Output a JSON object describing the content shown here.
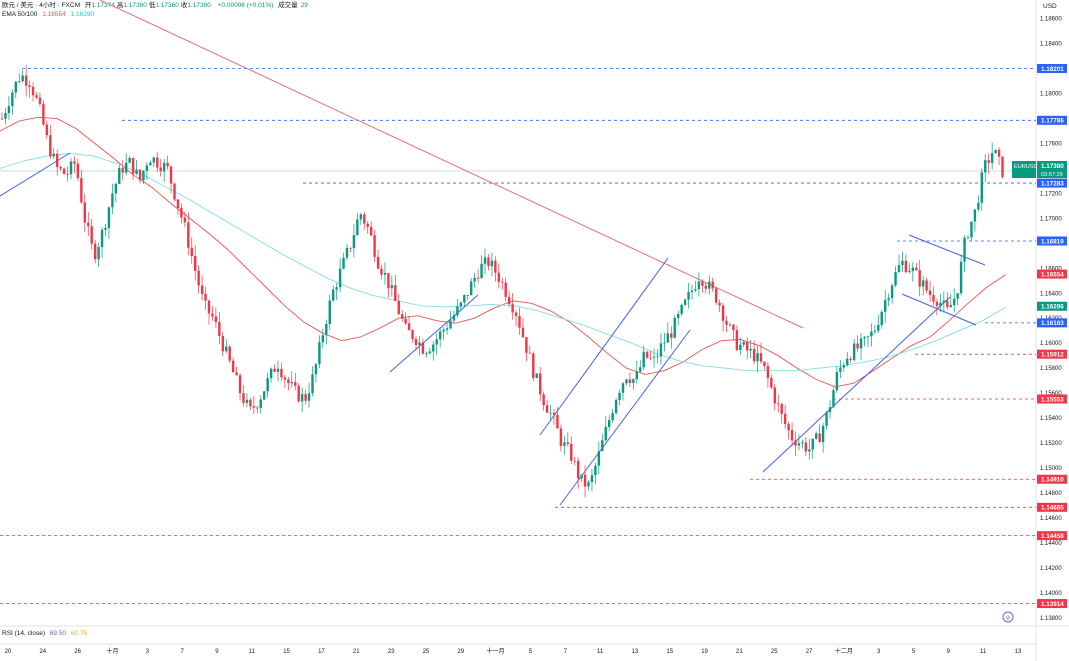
{
  "header": {
    "symbol_line": "欧元 / 美元 · 4小时 · FXCM",
    "ohlc": [
      {
        "k": "开",
        "v": "1.17374"
      },
      {
        "k": "高",
        "v": "1.17380"
      },
      {
        "k": "低",
        "v": "1.17360"
      },
      {
        "k": "收",
        "v": "1.17380"
      }
    ],
    "change": "+0.00006 (+0.01%)",
    "volume_label": "成交量",
    "volume": "29",
    "ema_label": "EMA 50/100",
    "ema_fast": "1.16554",
    "ema_slow": "1.16290",
    "rsi_label": "RSI (14, close)",
    "rsi_value": "69.50",
    "rsi_ma": "60.75"
  },
  "axis_unit": "USD",
  "colors": {
    "up": "#089981",
    "down": "#f23645",
    "ema_fast": "#ef5350",
    "ema_slow": "#80deea",
    "trend_red": "#e57373",
    "channel_blue": "#4263eb",
    "level_blue": "#2962ff",
    "level_red": "#f23645",
    "current": "#089981"
  },
  "chart_data": {
    "type": "candlestick",
    "y_ticks": [
      "1.18600",
      "1.18400",
      "1.18200",
      "1.18000",
      "1.17800",
      "1.17600",
      "1.17400",
      "1.17200",
      "1.17000",
      "1.16800",
      "1.16600",
      "1.16400",
      "1.16200",
      "1.16000",
      "1.15800",
      "1.15600",
      "1.15400",
      "1.15200",
      "1.15000",
      "1.14800",
      "1.14600",
      "1.14400",
      "1.14200",
      "1.14000",
      "1.13800"
    ],
    "x_ticks": [
      "20",
      "24",
      "26",
      "十月",
      "3",
      "7",
      "9",
      "11",
      "15",
      "17",
      "21",
      "23",
      "25",
      "29",
      "十一月",
      "5",
      "7",
      "11",
      "13",
      "15",
      "19",
      "21",
      "25",
      "27",
      "十二月",
      "3",
      "5",
      "9",
      "11",
      "13"
    ],
    "ylim": [
      1.1375,
      1.1875
    ],
    "current_symbol": "EURUSD",
    "current_price": "1.17380",
    "countdown": "03:57:29",
    "levels": [
      {
        "price": 1.18201,
        "label": "1.18201",
        "color": "blue"
      },
      {
        "price": 1.17786,
        "label": "1.17786",
        "color": "blue"
      },
      {
        "price": 1.17283,
        "label": "1.17283",
        "color": "blue"
      },
      {
        "price": 1.16819,
        "label": "1.16819",
        "color": "blue"
      },
      {
        "price": 1.16554,
        "label": "1.16554",
        "color": "red"
      },
      {
        "price": 1.16296,
        "label": "1.16296",
        "color": "green"
      },
      {
        "price": 1.16163,
        "label": "1.16163",
        "color": "blue"
      },
      {
        "price": 1.15912,
        "label": "1.15912",
        "color": "red"
      },
      {
        "price": 1.15553,
        "label": "1.15553",
        "color": "red"
      },
      {
        "price": 1.1491,
        "label": "1.14910",
        "color": "red"
      },
      {
        "price": 1.14685,
        "label": "1.14685",
        "color": "red"
      },
      {
        "price": 1.14458,
        "label": "1.14458",
        "color": "red"
      },
      {
        "price": 1.13914,
        "label": "1.13914",
        "color": "red"
      }
    ],
    "price_path": [
      1.178,
      1.18,
      1.1815,
      1.181,
      1.179,
      1.176,
      1.174,
      1.1735,
      1.1745,
      1.17,
      1.167,
      1.169,
      1.172,
      1.174,
      1.1745,
      1.173,
      1.175,
      1.1745,
      1.174,
      1.1715,
      1.169,
      1.166,
      1.163,
      1.162,
      1.16,
      1.158,
      1.156,
      1.1545,
      1.1555,
      1.157,
      1.1585,
      1.157,
      1.156,
      1.1555,
      1.1575,
      1.161,
      1.164,
      1.166,
      1.168,
      1.1705,
      1.169,
      1.1665,
      1.165,
      1.163,
      1.161,
      1.1605,
      1.1595,
      1.16,
      1.161,
      1.162,
      1.163,
      1.1645,
      1.166,
      1.1665,
      1.1655,
      1.164,
      1.1625,
      1.16,
      1.1575,
      1.1555,
      1.154,
      1.152,
      1.151,
      1.149,
      1.1485,
      1.151,
      1.1535,
      1.156,
      1.1575,
      1.157,
      1.159,
      1.1585,
      1.16,
      1.161,
      1.1625,
      1.164,
      1.1655,
      1.1645,
      1.1635,
      1.1615,
      1.16,
      1.1595,
      1.159,
      1.158,
      1.156,
      1.154,
      1.1525,
      1.152,
      1.1515,
      1.1525,
      1.1545,
      1.1575,
      1.159,
      1.1595,
      1.16,
      1.161,
      1.163,
      1.165,
      1.1665,
      1.166,
      1.165,
      1.164,
      1.1635,
      1.1625,
      1.164,
      1.1685,
      1.1705,
      1.174,
      1.1755,
      1.1738
    ],
    "ema_fast_path": [
      1.177,
      1.1778,
      1.1781,
      1.178,
      1.1772,
      1.176,
      1.1748,
      1.1735,
      1.1725,
      1.1712,
      1.17,
      1.1688,
      1.1675,
      1.166,
      1.1645,
      1.163,
      1.1617,
      1.1608,
      1.1602,
      1.1605,
      1.1612,
      1.162,
      1.1622,
      1.1618,
      1.1616,
      1.162,
      1.1628,
      1.1634,
      1.1632,
      1.1626,
      1.1617,
      1.1605,
      1.1592,
      1.158,
      1.1575,
      1.1578,
      1.1585,
      1.1595,
      1.1602,
      1.1603,
      1.1598,
      1.159,
      1.158,
      1.1571,
      1.1565,
      1.1568,
      1.1578,
      1.1588,
      1.1598,
      1.1605,
      1.1618,
      1.1632,
      1.1645,
      1.1655
    ],
    "ema_slow_path": [
      1.174,
      1.1746,
      1.175,
      1.1752,
      1.175,
      1.1744,
      1.1736,
      1.1726,
      1.1716,
      1.1705,
      1.1694,
      1.1683,
      1.1672,
      1.1662,
      1.1652,
      1.1644,
      1.1638,
      1.1634,
      1.163,
      1.1629,
      1.163,
      1.1631,
      1.163,
      1.1626,
      1.162,
      1.1614,
      1.1607,
      1.16,
      1.1592,
      1.1586,
      1.1582,
      1.158,
      1.1578,
      1.1578,
      1.1578,
      1.158,
      1.1582,
      1.1585,
      1.1589,
      1.1595,
      1.1602,
      1.161,
      1.1618,
      1.1629
    ]
  }
}
